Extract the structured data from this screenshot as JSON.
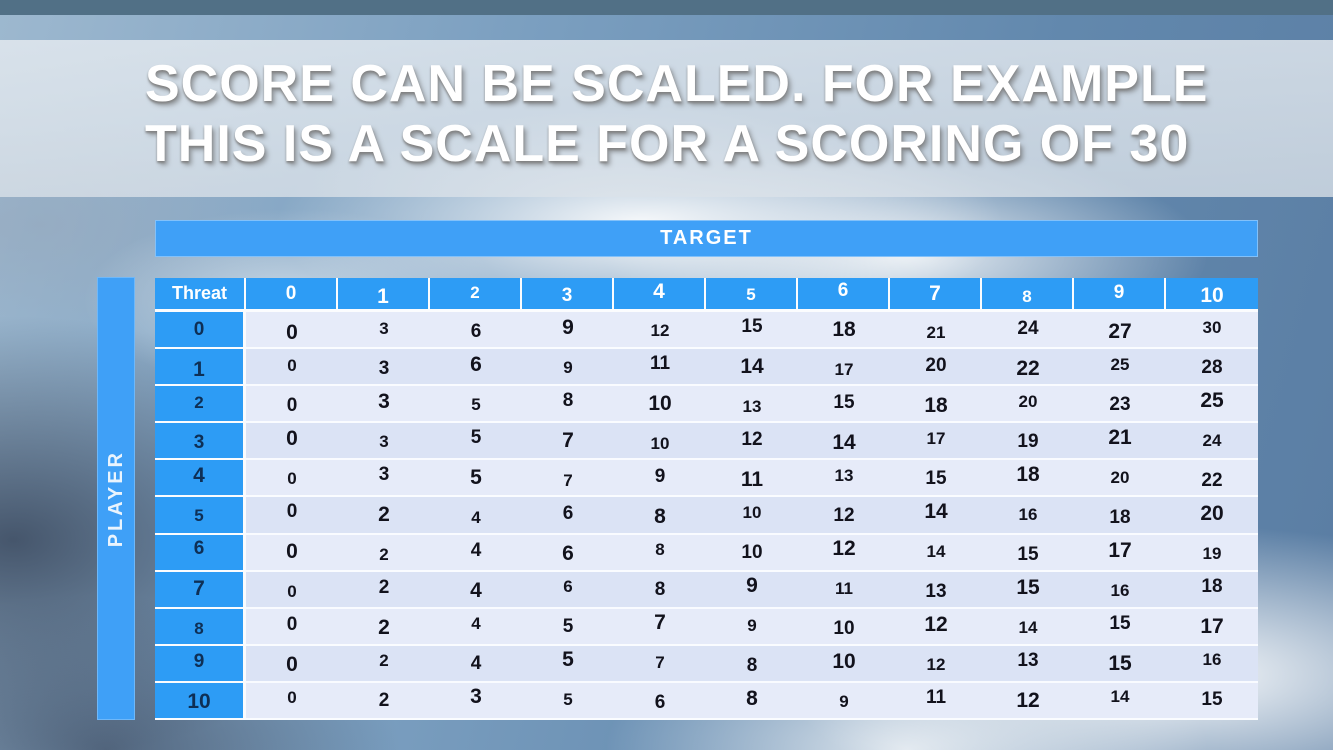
{
  "slide": {
    "title_line1": "SCORE CAN BE SCALED. FOR EXAMPLE",
    "title_line2": "THIS IS A SCALE FOR A SCORING OF 30"
  },
  "table": {
    "target_label": "TARGET",
    "player_label": "PLAYER",
    "corner_label": "Threat",
    "column_headers": [
      "0",
      "1",
      "2",
      "3",
      "4",
      "5",
      "6",
      "7",
      "8",
      "9",
      "10"
    ],
    "row_headers": [
      "0",
      "1",
      "2",
      "3",
      "4",
      "5",
      "6",
      "7",
      "8",
      "9",
      "10"
    ],
    "rows": [
      [
        0,
        3,
        6,
        9,
        12,
        15,
        18,
        21,
        24,
        27,
        30
      ],
      [
        0,
        3,
        6,
        9,
        11,
        14,
        17,
        20,
        22,
        25,
        28
      ],
      [
        0,
        3,
        5,
        8,
        10,
        13,
        15,
        18,
        20,
        23,
        25
      ],
      [
        0,
        3,
        5,
        7,
        10,
        12,
        14,
        17,
        19,
        21,
        24
      ],
      [
        0,
        3,
        5,
        7,
        9,
        11,
        13,
        15,
        18,
        20,
        22
      ],
      [
        0,
        2,
        4,
        6,
        8,
        10,
        12,
        14,
        16,
        18,
        20
      ],
      [
        0,
        2,
        4,
        6,
        8,
        10,
        12,
        14,
        15,
        17,
        19
      ],
      [
        0,
        2,
        4,
        6,
        8,
        9,
        11,
        13,
        15,
        16,
        18
      ],
      [
        0,
        2,
        4,
        5,
        7,
        9,
        10,
        12,
        14,
        15,
        17
      ],
      [
        0,
        2,
        4,
        5,
        7,
        8,
        10,
        12,
        13,
        15,
        16
      ],
      [
        0,
        2,
        3,
        5,
        6,
        8,
        9,
        11,
        12,
        14,
        15
      ]
    ]
  },
  "colors": {
    "accent_blue": "#2d9cf5",
    "bar_blue": "#3fa0f7",
    "top_strip": "#517086",
    "row_light": "#e6ebf9",
    "row_dark": "#dbe3f5",
    "title_text": "#ffffff"
  }
}
